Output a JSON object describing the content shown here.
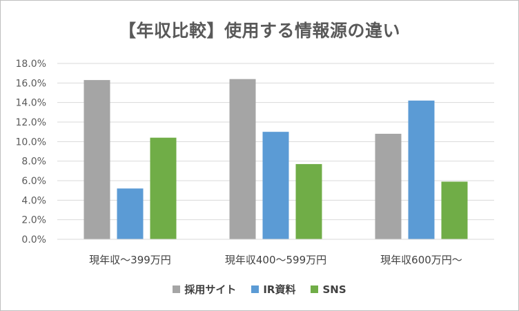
{
  "chart_data": {
    "type": "bar",
    "title": "【年収比較】使用する情報源の違い",
    "categories": [
      "現年収～399万円",
      "現年収400～599万円",
      "現年収600万円～"
    ],
    "series": [
      {
        "name": "採用サイト",
        "color": "#a5a5a5",
        "values": [
          16.3,
          16.4,
          10.8
        ]
      },
      {
        "name": "IR資料",
        "color": "#5b9bd5",
        "values": [
          5.2,
          11.0,
          14.2
        ]
      },
      {
        "name": "SNS",
        "color": "#70ad47",
        "values": [
          10.4,
          7.7,
          5.9
        ]
      }
    ],
    "ylim": [
      0,
      18
    ],
    "yticks": [
      "0.0%",
      "2.0%",
      "4.0%",
      "6.0%",
      "8.0%",
      "10.0%",
      "12.0%",
      "14.0%",
      "16.0%",
      "18.0%"
    ],
    "grid": true,
    "legend_position": "bottom"
  }
}
